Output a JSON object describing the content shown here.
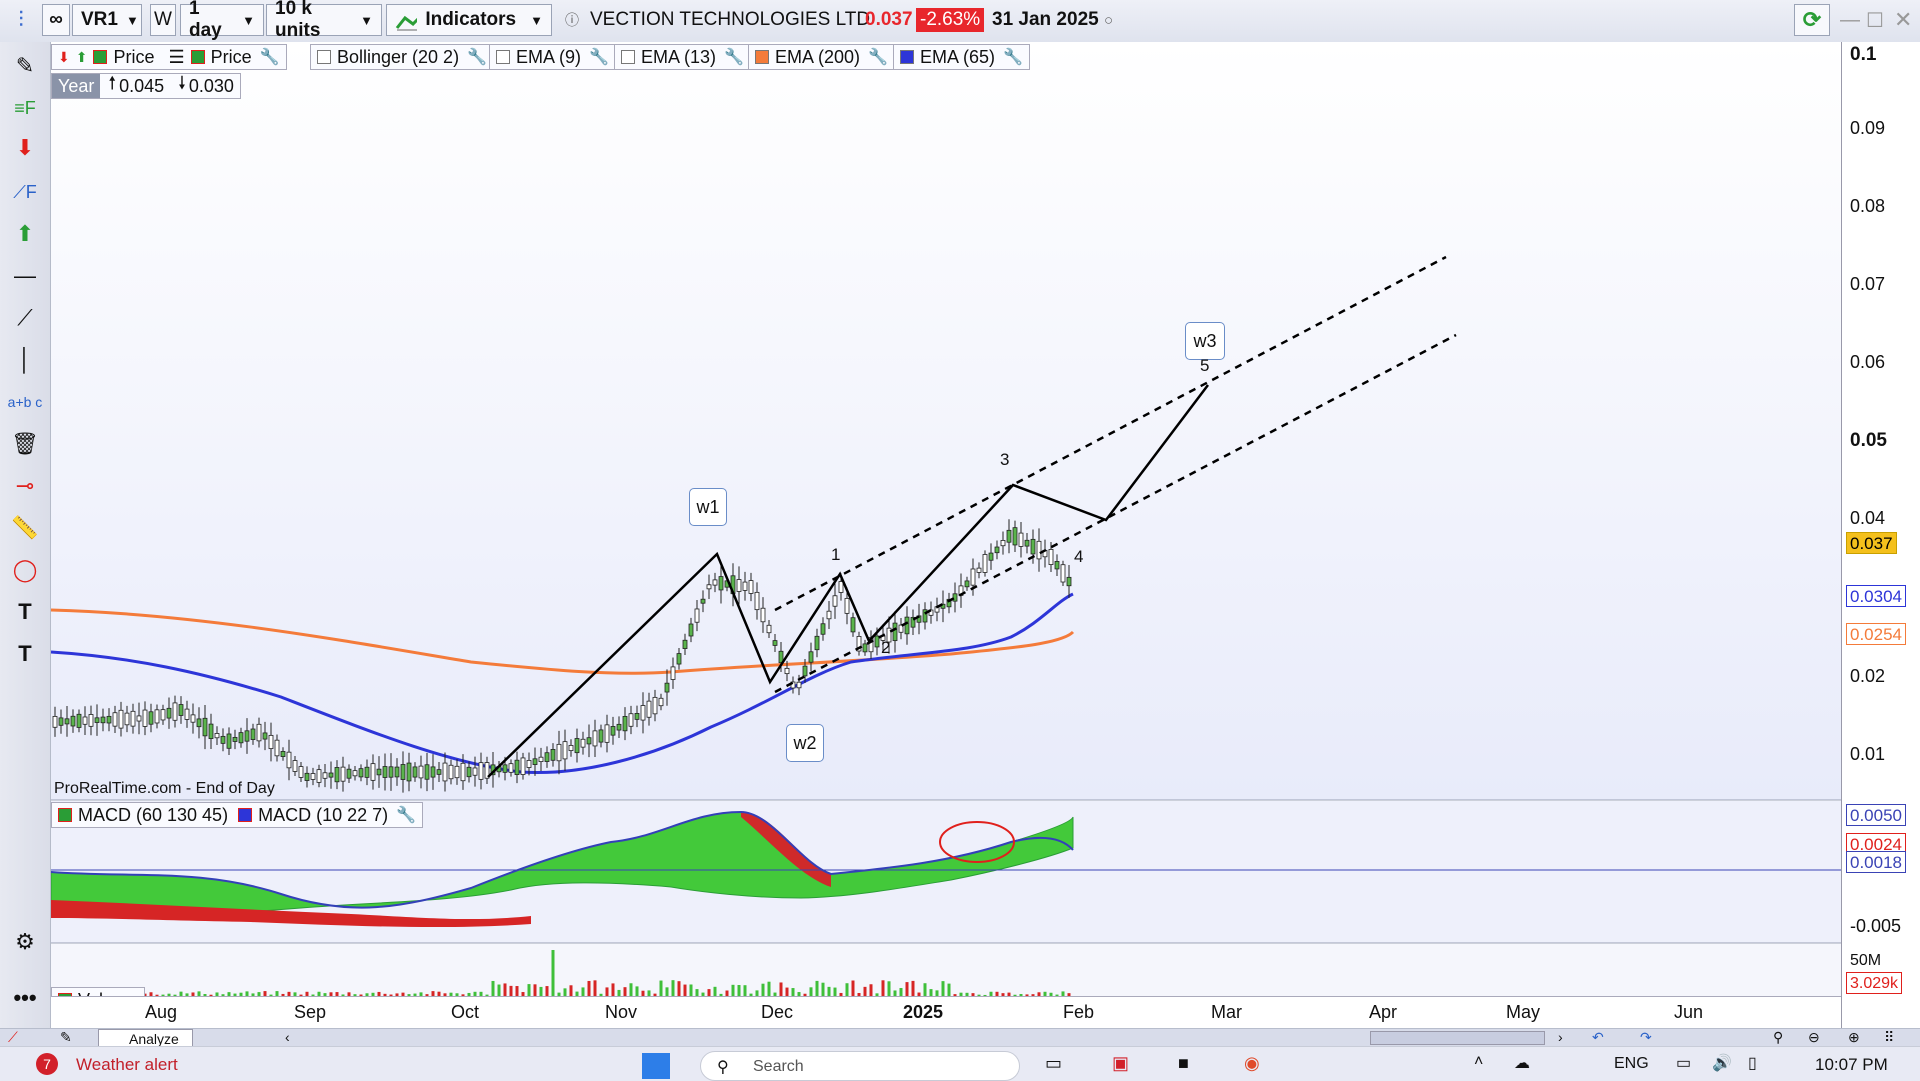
{
  "toolbar": {
    "symbol": "VR1",
    "window_letter": "W",
    "timeframe": "1 day",
    "units": "10 k units",
    "indicators_label": "Indicators",
    "instrument_name": "VECTION TECHNOLOGIES LTD",
    "last_price": "0.037",
    "change_pct": "-2.63%",
    "date": "31 Jan 2025",
    "price_color": "#e8262c"
  },
  "legend": {
    "price_a": "Price",
    "price_b": "Price",
    "bollinger": "Bollinger (20 2)",
    "ema9": "EMA (9)",
    "ema13": "EMA (13)",
    "ema200": "EMA (200)",
    "ema65": "EMA (65)",
    "ema200_color": "#f47b3a",
    "ema65_color": "#2d35d8"
  },
  "period": {
    "label": "Year",
    "high": "0.045",
    "low": "0.030"
  },
  "source_text": "ProRealTime.com - End of Day",
  "macd": {
    "label_a": "MACD (60 130 45)",
    "label_b": "MACD (10 22 7)"
  },
  "volume": {
    "label": "Volume"
  },
  "price_axis": [
    "0.1",
    "0.09",
    "0.08",
    "0.07",
    "0.06",
    "0.05",
    "0.04",
    "0.02",
    "0.01"
  ],
  "price_tags": {
    "last": "0.037",
    "ema65": "0.0304",
    "ema200": "0.0254"
  },
  "macd_axis": {
    "a": "0.0050",
    "b": "0.0024",
    "c": "0.0018",
    "d": "-0.005"
  },
  "volume_axis": {
    "max": "50M",
    "last": "3.029k"
  },
  "date_axis": [
    "Aug",
    "Sep",
    "Oct",
    "Nov",
    "Dec",
    "2025",
    "Feb",
    "Mar",
    "Apr",
    "May",
    "Jun"
  ],
  "waves": {
    "w1": "w1",
    "w2": "w2",
    "w3": "w3",
    "n1": "1",
    "n2": "2",
    "n3": "3",
    "n4": "4",
    "n5": "5"
  },
  "taskbar": {
    "weather_badge": "7",
    "weather": "Weather alert",
    "search": "Search",
    "lang": "ENG",
    "time": "10:07 PM",
    "analyze_tab": "Analyze"
  }
}
